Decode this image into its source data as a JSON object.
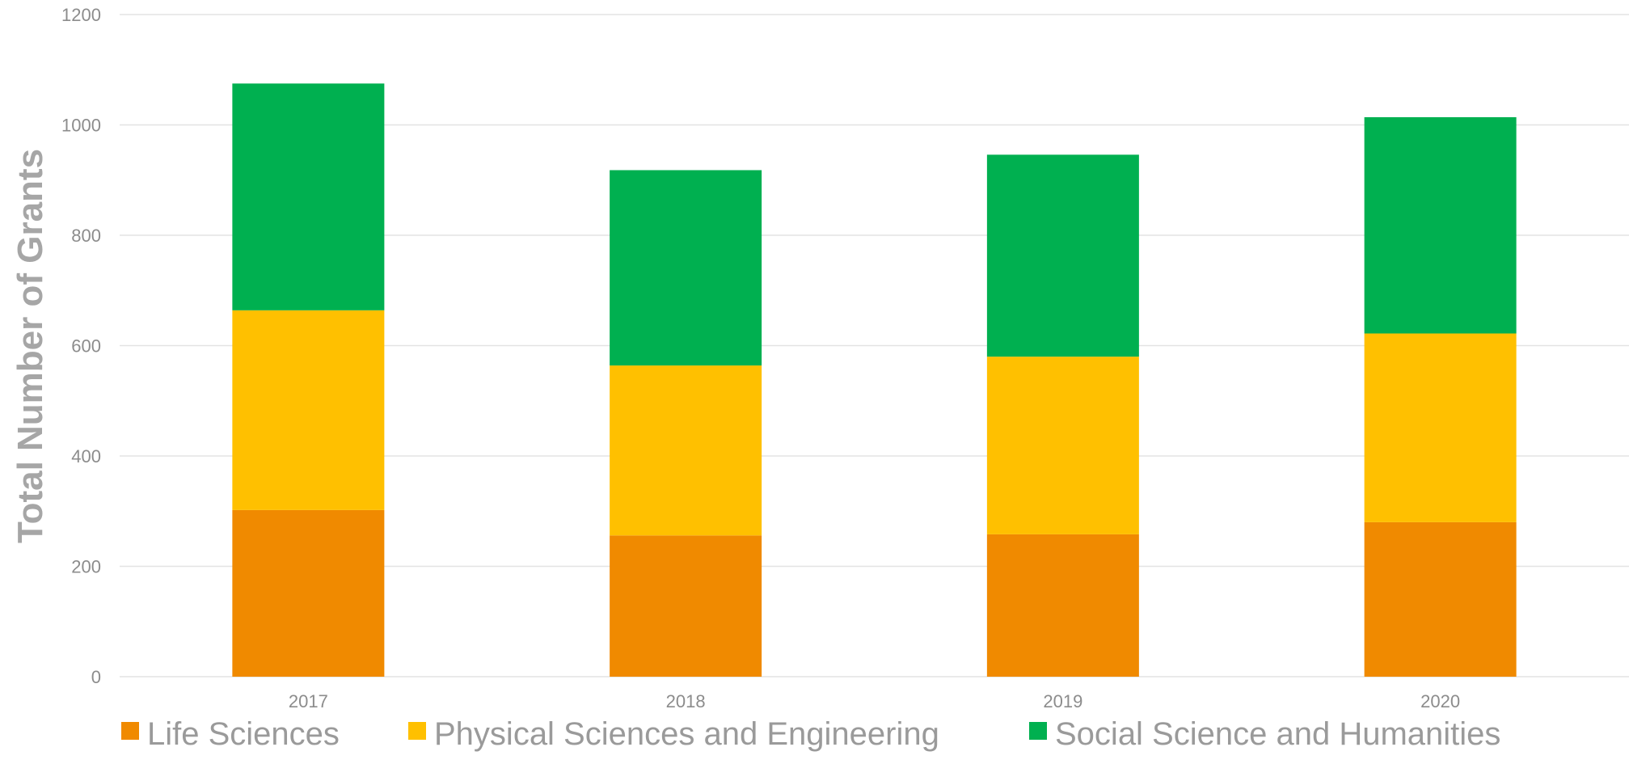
{
  "chart_data": {
    "type": "bar",
    "stacked": true,
    "categories": [
      "2017",
      "2018",
      "2019",
      "2020"
    ],
    "series": [
      {
        "name": "Life Sciences",
        "color": "#f08a00",
        "values": [
          302,
          256,
          258,
          280
        ]
      },
      {
        "name": "Physical Sciences and Engineering",
        "color": "#ffc000",
        "values": [
          362,
          308,
          322,
          342
        ]
      },
      {
        "name": "Social Science and Humanities",
        "color": "#00b050",
        "values": [
          411,
          354,
          366,
          392
        ]
      }
    ],
    "ylabel": "Total Number of Grants",
    "xlabel": "",
    "ylim": [
      0,
      1200
    ],
    "yticks": [
      0,
      200,
      400,
      600,
      800,
      1000,
      1200
    ],
    "grid": true,
    "legend_position": "bottom"
  }
}
